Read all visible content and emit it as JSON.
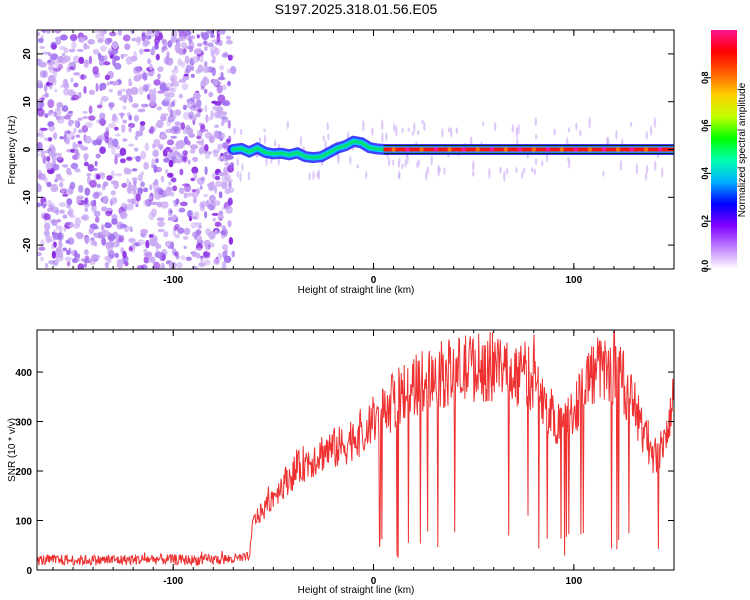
{
  "figure_title": "S197.2025.318.01.56.E05",
  "colors": {
    "snr_line": "#ee3030",
    "track": "#202020",
    "colormap": [
      "#ffffff",
      "#c9a8f3",
      "#8a2be2",
      "#2020ff",
      "#00c8ff",
      "#00e070",
      "#a0ff00",
      "#ffd000",
      "#ff7000",
      "#ff1010",
      "#ff1493"
    ]
  },
  "chart_data": [
    {
      "type": "heatmap",
      "title": "S197.2025.318.01.56.E05",
      "xlabel": "Height of straight line (km)",
      "ylabel": "Frequency (Hz)",
      "xlim": [
        -168,
        150
      ],
      "ylim": [
        -25,
        25
      ],
      "xticks": [
        -100,
        0,
        100
      ],
      "yticks": [
        -20,
        -10,
        0,
        10,
        20
      ],
      "noise_region_x": [
        -168,
        -70
      ],
      "signal_track": {
        "x": [
          -70,
          -66,
          -62,
          -58,
          -54,
          -50,
          -46,
          -42,
          -38,
          -34,
          -30,
          -26,
          -22,
          -18,
          -14,
          -10,
          -6,
          -2,
          2,
          6,
          10,
          20,
          40,
          60,
          80,
          100,
          120,
          140,
          150
        ],
        "y": [
          0,
          0.2,
          -0.5,
          0.3,
          -0.6,
          -0.9,
          -0.8,
          -1.1,
          -0.7,
          -1.5,
          -1.7,
          -1.5,
          -0.6,
          0.3,
          0.8,
          1.7,
          1.4,
          0.4,
          0.1,
          0,
          0,
          0,
          0,
          0,
          0,
          0,
          0,
          0,
          0
        ]
      },
      "colorbar": {
        "label": "Normalized spectral amplitude",
        "range": [
          0.0,
          1.0
        ],
        "ticks": [
          0.0,
          0.2,
          0.4,
          0.6,
          0.8
        ]
      }
    },
    {
      "type": "line",
      "xlabel": "Height of straight line (km)",
      "ylabel": "SNR (10 * v/v)",
      "xlim": [
        -168,
        150
      ],
      "ylim": [
        0,
        485
      ],
      "xticks": [
        -100,
        0,
        100
      ],
      "yticks": [
        0,
        100,
        200,
        300,
        400
      ],
      "series": [
        {
          "name": "SNR",
          "x": [
            -168,
            -150,
            -130,
            -110,
            -90,
            -70,
            -62,
            -60,
            -55,
            -50,
            -45,
            -40,
            -35,
            -30,
            -25,
            -20,
            -15,
            -10,
            -5,
            0,
            5,
            10,
            15,
            20,
            25,
            30,
            35,
            40,
            45,
            50,
            55,
            60,
            65,
            70,
            75,
            80,
            85,
            90,
            95,
            100,
            105,
            110,
            115,
            120,
            125,
            130,
            135,
            140,
            145,
            150
          ],
          "y": [
            20,
            20,
            20,
            22,
            20,
            22,
            25,
            100,
            120,
            150,
            175,
            195,
            215,
            225,
            240,
            245,
            250,
            270,
            280,
            300,
            320,
            340,
            360,
            370,
            385,
            395,
            395,
            400,
            405,
            410,
            410,
            410,
            405,
            400,
            395,
            385,
            330,
            310,
            300,
            320,
            380,
            400,
            405,
            395,
            380,
            330,
            280,
            230,
            250,
            350
          ]
        }
      ]
    }
  ]
}
